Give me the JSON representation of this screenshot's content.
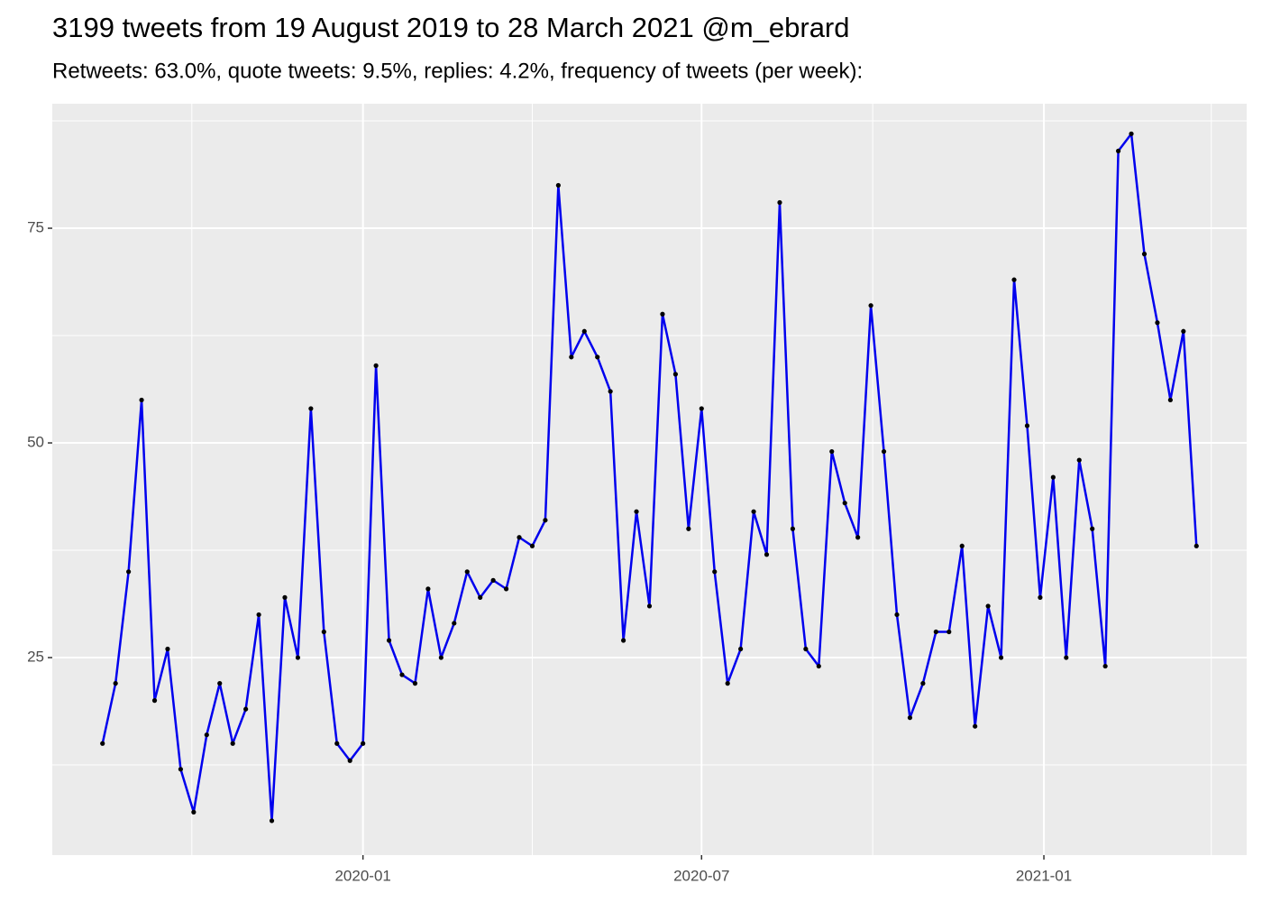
{
  "chart_data": {
    "type": "line",
    "title": "3199 tweets from 19 August 2019 to 28 March 2021 @m_ebrard",
    "subtitle": "Retweets: 63.0%, quote tweets: 9.5%, replies: 4.2%, frequency of tweets (per week):",
    "x": [
      "2019-08-14",
      "2019-08-21",
      "2019-08-28",
      "2019-09-04",
      "2019-09-11",
      "2019-09-18",
      "2019-09-25",
      "2019-10-02",
      "2019-10-09",
      "2019-10-16",
      "2019-10-23",
      "2019-10-30",
      "2019-11-06",
      "2019-11-13",
      "2019-11-20",
      "2019-11-27",
      "2019-12-04",
      "2019-12-11",
      "2019-12-18",
      "2019-12-25",
      "2020-01-01",
      "2020-01-08",
      "2020-01-15",
      "2020-01-22",
      "2020-01-29",
      "2020-02-05",
      "2020-02-12",
      "2020-02-19",
      "2020-02-26",
      "2020-03-04",
      "2020-03-11",
      "2020-03-18",
      "2020-03-25",
      "2020-04-01",
      "2020-04-08",
      "2020-04-15",
      "2020-04-22",
      "2020-04-29",
      "2020-05-06",
      "2020-05-13",
      "2020-05-20",
      "2020-05-27",
      "2020-06-03",
      "2020-06-10",
      "2020-06-17",
      "2020-06-24",
      "2020-07-01",
      "2020-07-08",
      "2020-07-15",
      "2020-07-22",
      "2020-07-29",
      "2020-08-05",
      "2020-08-12",
      "2020-08-19",
      "2020-08-26",
      "2020-09-02",
      "2020-09-09",
      "2020-09-16",
      "2020-09-23",
      "2020-09-30",
      "2020-10-07",
      "2020-10-14",
      "2020-10-21",
      "2020-10-28",
      "2020-11-04",
      "2020-11-11",
      "2020-11-18",
      "2020-11-25",
      "2020-12-02",
      "2020-12-09",
      "2020-12-16",
      "2020-12-23",
      "2020-12-30",
      "2021-01-06",
      "2021-01-13",
      "2021-01-20",
      "2021-01-27",
      "2021-02-03",
      "2021-02-10",
      "2021-02-17",
      "2021-02-24",
      "2021-03-03",
      "2021-03-10",
      "2021-03-17",
      "2021-03-24"
    ],
    "series": [
      {
        "color": "#0000EE",
        "point_color": "#000000",
        "values": [
          15,
          22,
          35,
          55,
          20,
          26,
          12,
          7,
          16,
          22,
          15,
          19,
          30,
          6,
          32,
          25,
          54,
          28,
          15,
          13,
          15,
          59,
          27,
          23,
          22,
          33,
          25,
          29,
          35,
          32,
          34,
          33,
          39,
          38,
          41,
          80,
          60,
          63,
          60,
          56,
          27,
          42,
          31,
          65,
          58,
          40,
          54,
          35,
          22,
          26,
          42,
          37,
          78,
          40,
          26,
          24,
          49,
          43,
          39,
          66,
          49,
          30,
          18,
          22,
          28,
          28,
          38,
          17,
          31,
          25,
          69,
          52,
          32,
          46,
          25,
          48,
          40,
          24,
          84,
          86,
          72,
          64,
          55,
          63,
          38
        ]
      }
    ],
    "xlim": [
      "2019-07-18",
      "2021-04-20"
    ],
    "xticks": [
      {
        "value": "2020-01-01",
        "label": "2020-01"
      },
      {
        "value": "2020-07-01",
        "label": "2020-07"
      },
      {
        "value": "2021-01-01",
        "label": "2021-01"
      }
    ],
    "x_minor_grid": [
      "2019-10-01",
      "2020-04-01",
      "2020-10-01",
      "2021-04-01"
    ],
    "ylim": [
      2,
      89.5
    ],
    "yticks": [
      25,
      50,
      75
    ],
    "y_minor_grid": [
      12.5,
      37.5,
      62.5,
      87.5
    ],
    "grid": true
  }
}
